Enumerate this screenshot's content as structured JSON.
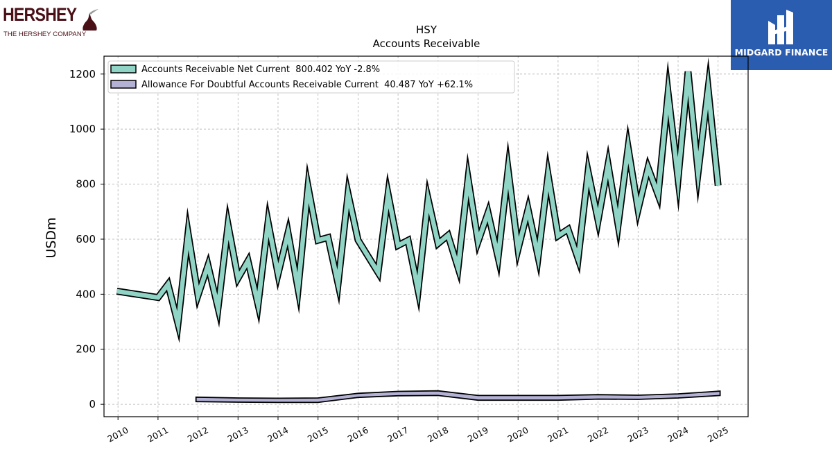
{
  "logos": {
    "left_brand": "HERSHEY",
    "left_tagline": "THE HERSHEY COMPANY",
    "right_brand": "MIDGARD FINANCE"
  },
  "chart_data": {
    "type": "line",
    "title": "HSY",
    "subtitle": "Accounts Receivable",
    "ylabel": "USDm",
    "xlabel": "",
    "xlim": [
      2009.65,
      2025.75
    ],
    "ylim": [
      -45,
      1265
    ],
    "xticks": [
      "2010",
      "2011",
      "2012",
      "2013",
      "2014",
      "2015",
      "2016",
      "2017",
      "2018",
      "2019",
      "2020",
      "2021",
      "2022",
      "2023",
      "2024",
      "2025"
    ],
    "yticks": [
      "0",
      "200",
      "400",
      "600",
      "800",
      "1000",
      "1200"
    ],
    "grid": true,
    "legend_position": "top-left",
    "series": [
      {
        "name": "Accounts Receivable Net Current",
        "legend": "Accounts Receivable Net Current  800.402 YoY -2.8%",
        "color": "#8fd4c5",
        "points": [
          [
            2009.97,
            411
          ],
          [
            2011.0,
            388
          ],
          [
            2011.25,
            436
          ],
          [
            2011.5,
            293
          ],
          [
            2011.75,
            622
          ],
          [
            2012.0,
            396
          ],
          [
            2012.25,
            505
          ],
          [
            2012.5,
            350
          ],
          [
            2012.75,
            652
          ],
          [
            2013.0,
            458
          ],
          [
            2013.25,
            521
          ],
          [
            2013.5,
            362
          ],
          [
            2013.75,
            662
          ],
          [
            2014.0,
            473
          ],
          [
            2014.25,
            623
          ],
          [
            2014.5,
            419
          ],
          [
            2014.75,
            790
          ],
          [
            2015.0,
            596
          ],
          [
            2015.25,
            606
          ],
          [
            2015.5,
            438
          ],
          [
            2015.75,
            765
          ],
          [
            2016.0,
            597
          ],
          [
            2016.5,
            479
          ],
          [
            2016.75,
            764
          ],
          [
            2017.0,
            577
          ],
          [
            2017.25,
            596
          ],
          [
            2017.5,
            414
          ],
          [
            2017.75,
            746
          ],
          [
            2018.0,
            584
          ],
          [
            2018.25,
            614
          ],
          [
            2018.5,
            496
          ],
          [
            2018.75,
            820
          ],
          [
            2019.0,
            591
          ],
          [
            2019.25,
            696
          ],
          [
            2019.5,
            534
          ],
          [
            2019.75,
            853
          ],
          [
            2020.0,
            564
          ],
          [
            2020.25,
            709
          ],
          [
            2020.5,
            536
          ],
          [
            2020.75,
            833
          ],
          [
            2021.0,
            612
          ],
          [
            2021.25,
            636
          ],
          [
            2021.5,
            529
          ],
          [
            2021.75,
            845
          ],
          [
            2022.0,
            668
          ],
          [
            2022.25,
            871
          ],
          [
            2022.5,
            652
          ],
          [
            2022.75,
            933
          ],
          [
            2023.0,
            708
          ],
          [
            2023.25,
            860
          ],
          [
            2023.5,
            761
          ],
          [
            2023.75,
            1131
          ],
          [
            2024.0,
            819
          ],
          [
            2024.25,
            1209
          ],
          [
            2024.5,
            843
          ],
          [
            2024.75,
            1147
          ],
          [
            2025.0,
            795
          ]
        ]
      },
      {
        "name": "Allowance For Doubtful Accounts Receivable Current",
        "legend": "Allowance For Doubtful Accounts Receivable Current  40.487 YoY +62.1%",
        "color": "#b3b1d4",
        "upper": [
          [
            2011.95,
            26
          ],
          [
            2013.0,
            23
          ],
          [
            2014.0,
            22
          ],
          [
            2015.0,
            23
          ],
          [
            2016.0,
            40
          ],
          [
            2017.0,
            47
          ],
          [
            2018.0,
            49
          ],
          [
            2019.0,
            32
          ],
          [
            2020.0,
            32
          ],
          [
            2021.0,
            32
          ],
          [
            2022.0,
            35
          ],
          [
            2023.0,
            33
          ],
          [
            2024.0,
            38
          ],
          [
            2025.05,
            48
          ]
        ],
        "lower": [
          [
            2011.95,
            10
          ],
          [
            2013.0,
            8
          ],
          [
            2014.0,
            7
          ],
          [
            2015.0,
            7
          ],
          [
            2016.0,
            25
          ],
          [
            2017.0,
            31
          ],
          [
            2018.0,
            32
          ],
          [
            2019.0,
            15
          ],
          [
            2020.0,
            15
          ],
          [
            2021.0,
            15
          ],
          [
            2022.0,
            19
          ],
          [
            2023.0,
            18
          ],
          [
            2024.0,
            23
          ],
          [
            2025.05,
            32
          ]
        ]
      }
    ]
  }
}
